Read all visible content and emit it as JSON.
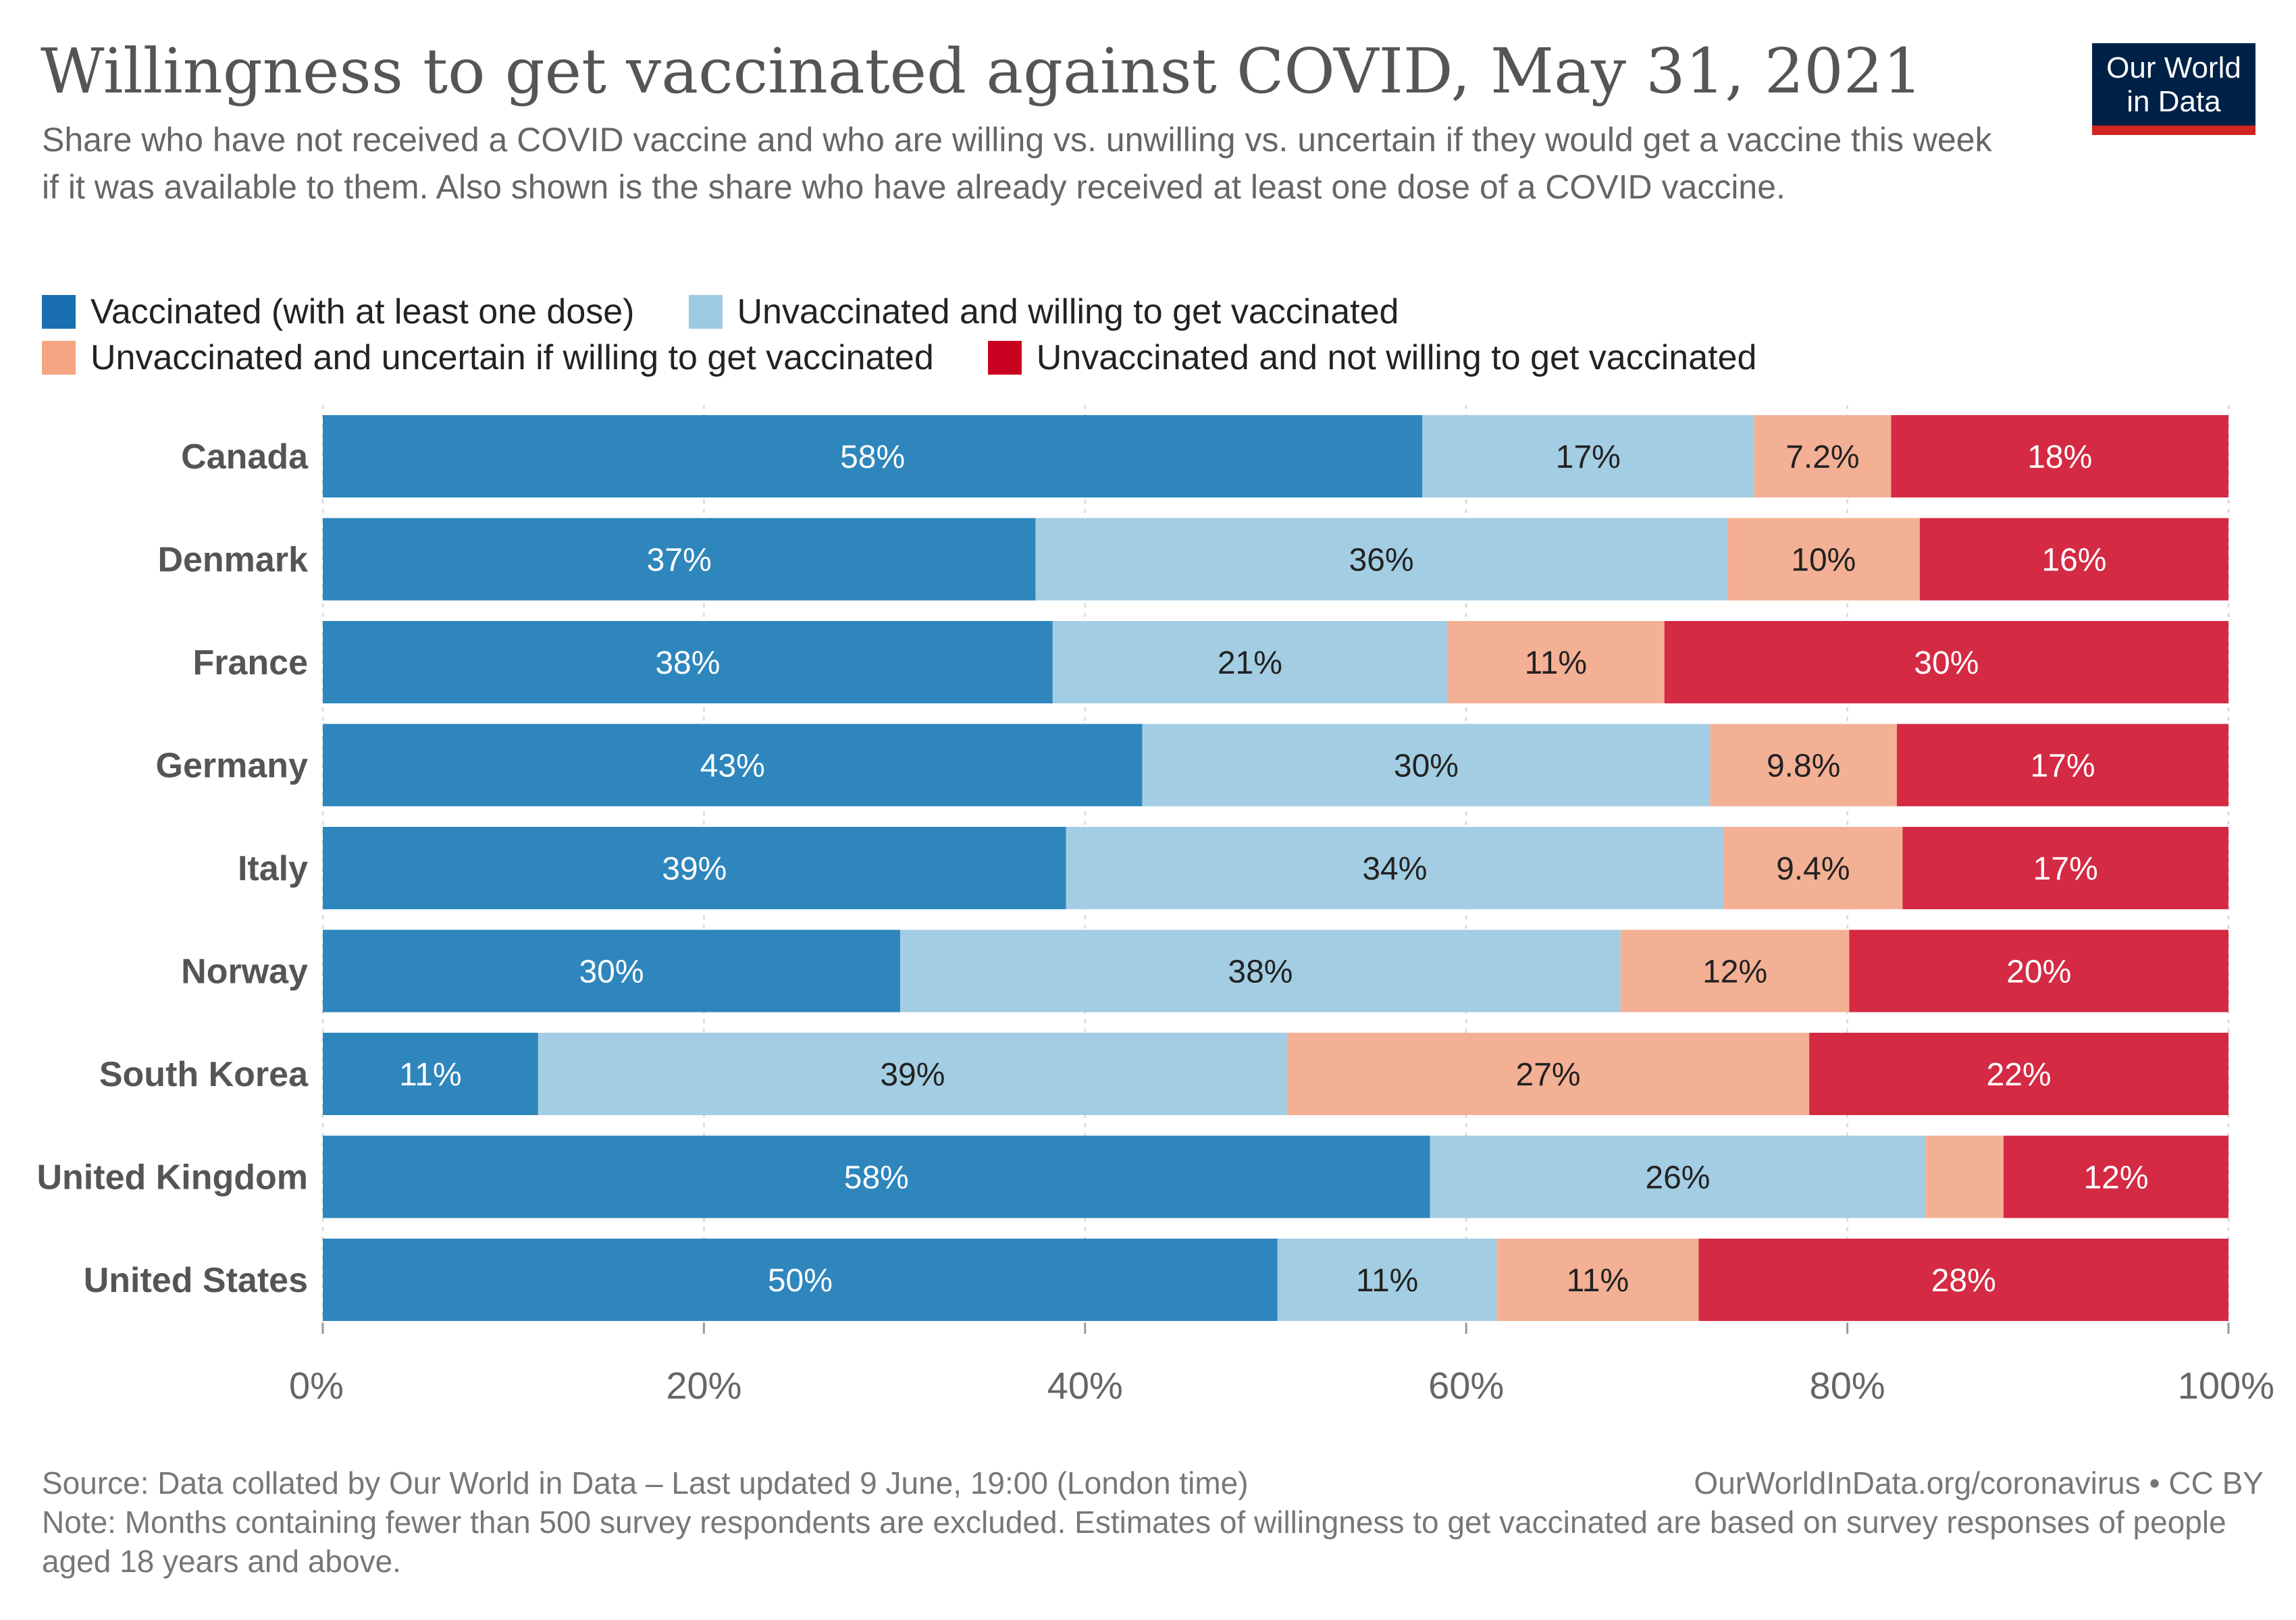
{
  "header": {
    "title": "Willingness to get vaccinated against COVID, May 31, 2021",
    "subtitle": "Share who have not received a COVID vaccine and who are willing vs. unwilling vs. uncertain if they would get a vaccine this week if it was available to them. Also shown is the share who have already received at least one dose of a COVID vaccine.",
    "logo_line1": "Our World",
    "logo_line2": "in Data"
  },
  "footer": {
    "source": "Source: Data collated by Our World in Data – Last updated 9 June, 19:00 (London time)",
    "link": "OurWorldInData.org/coronavirus • CC BY",
    "note": "Note: Months containing fewer than 500 survey respondents are excluded. Estimates of willingness to get vaccinated are based on survey responses of people aged 18 years and above."
  },
  "chart_data": {
    "type": "bar",
    "orientation": "horizontal",
    "stacked": true,
    "categories": [
      "Canada",
      "Denmark",
      "France",
      "Germany",
      "Italy",
      "Norway",
      "South Korea",
      "United Kingdom",
      "United States"
    ],
    "series": [
      {
        "name": "Vaccinated (with at least one dose)",
        "color": "#2e86bd",
        "legend_color": "#1a6fb0",
        "label_color": "#ffffff",
        "values": [
          57.7,
          37.4,
          38.3,
          43.0,
          39.0,
          30.3,
          11.3,
          58.1,
          50.1
        ],
        "labels": [
          "58%",
          "37%",
          "38%",
          "43%",
          "39%",
          "30%",
          "11%",
          "58%",
          "50%"
        ]
      },
      {
        "name": "Unvaccinated and willing to get vaccinated",
        "color": "#a3cde3",
        "legend_color": "#9ecae1",
        "label_color": "#222222",
        "values": [
          17.4,
          36.3,
          20.7,
          29.8,
          34.5,
          37.8,
          39.3,
          26.0,
          11.5
        ],
        "labels": [
          "17%",
          "36%",
          "21%",
          "30%",
          "34%",
          "38%",
          "39%",
          "26%",
          "11%"
        ]
      },
      {
        "name": "Unvaccinated and uncertain if willing to get vaccinated",
        "color": "#f4b094",
        "legend_color": "#f4a582",
        "label_color": "#222222",
        "values": [
          7.2,
          10.1,
          11.4,
          9.8,
          9.4,
          12.0,
          27.4,
          4.1,
          10.6
        ],
        "labels": [
          "7.2%",
          "10%",
          "11%",
          "9.8%",
          "9.4%",
          "12%",
          "27%",
          "",
          "11%"
        ]
      },
      {
        "name": "Unvaccinated and not willing to get vaccinated",
        "color": "#d42a44",
        "legend_color": "#ca0020",
        "label_color": "#ffffff",
        "values": [
          17.7,
          16.2,
          29.6,
          17.4,
          17.1,
          19.9,
          22.0,
          11.8,
          27.8
        ],
        "labels": [
          "18%",
          "16%",
          "30%",
          "17%",
          "17%",
          "20%",
          "22%",
          "12%",
          "28%"
        ]
      }
    ],
    "xlim": [
      0,
      100
    ],
    "xticks": [
      0,
      20,
      40,
      60,
      80,
      100
    ],
    "xtick_labels": [
      "0%",
      "20%",
      "40%",
      "60%",
      "80%",
      "100%"
    ],
    "legend_position": "top"
  }
}
